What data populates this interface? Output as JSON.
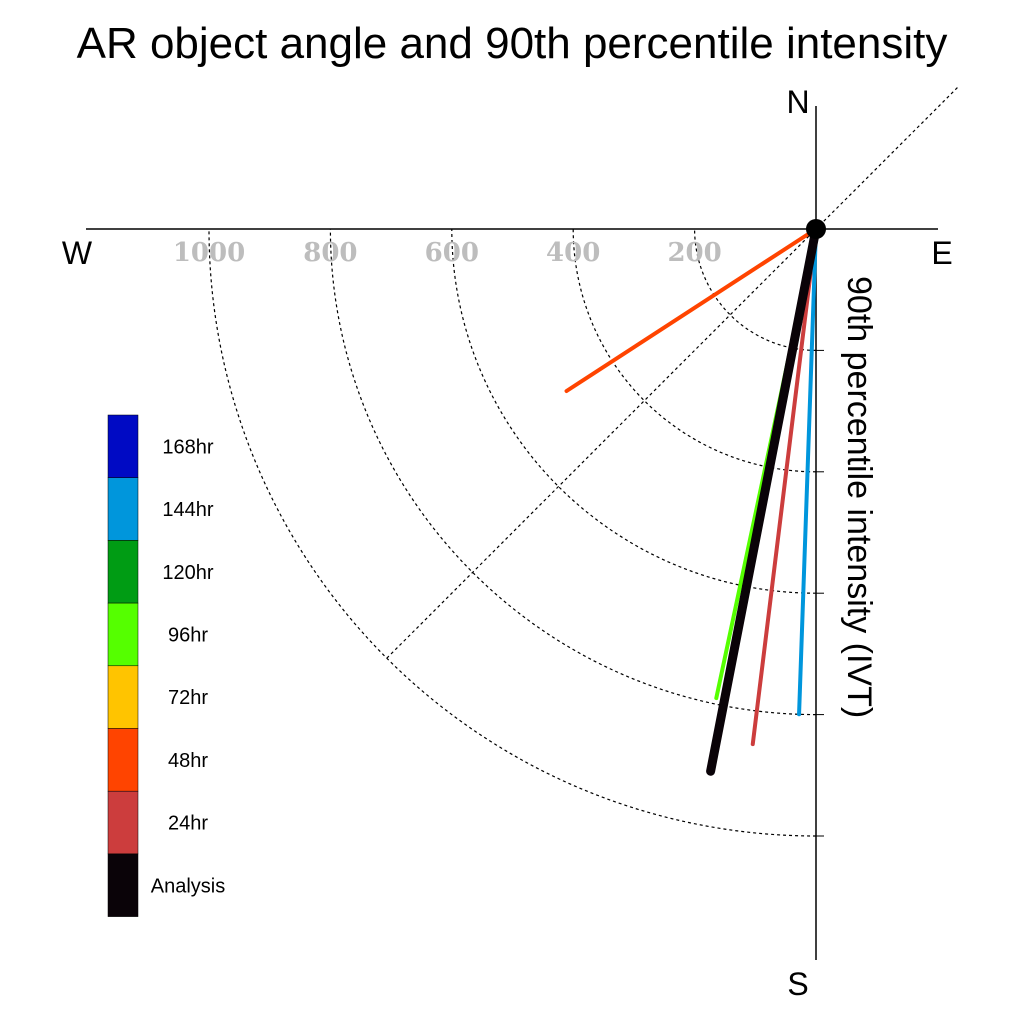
{
  "chart_data": {
    "type": "polar-vector",
    "title": "AR object angle and 90th percentile intensity",
    "radial_label": "90th percentile intensity (IVT)",
    "compass": {
      "north": "N",
      "south": "S",
      "east": "E",
      "west": "W"
    },
    "radial_ticks": [
      200,
      400,
      600,
      800,
      1000
    ],
    "radial_max": 1000,
    "grid": true,
    "series": [
      {
        "name": "Analysis",
        "color": "#0a0308",
        "angle_deg": 191,
        "intensity": 910
      },
      {
        "name": "24hr",
        "color": "#cc3d3d",
        "angle_deg": 187,
        "intensity": 855
      },
      {
        "name": "48hr",
        "color": "#ff4400",
        "angle_deg": 237,
        "intensity": 490
      },
      {
        "name": "72hr",
        "color": "#ffc400",
        "angle_deg": null,
        "intensity": null
      },
      {
        "name": "96hr",
        "color": "#55ff00",
        "angle_deg": 192,
        "intensity": 790
      },
      {
        "name": "120hr",
        "color": "#009c14",
        "angle_deg": 191,
        "intensity": 825
      },
      {
        "name": "144hr",
        "color": "#0096dc",
        "angle_deg": 182,
        "intensity": 800
      },
      {
        "name": "168hr",
        "color": "#000ac4",
        "angle_deg": null,
        "intensity": null
      }
    ],
    "legend_position": "left"
  }
}
